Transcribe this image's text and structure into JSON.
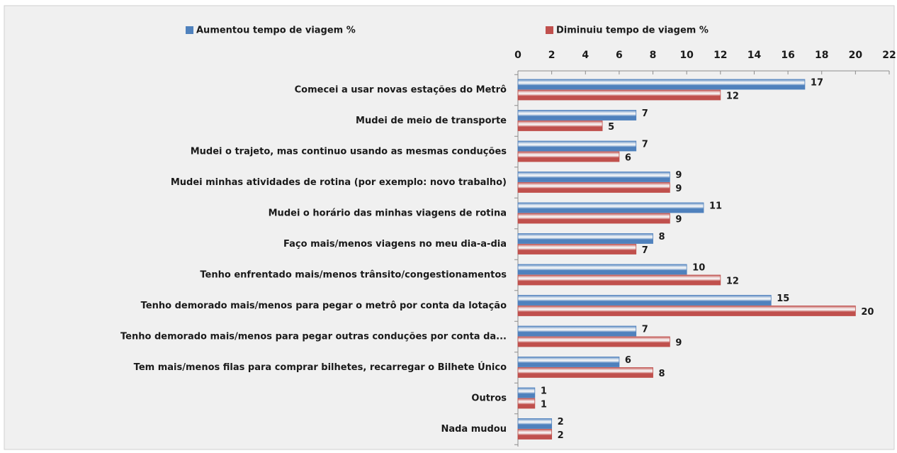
{
  "chart_data": {
    "type": "bar",
    "orientation": "horizontal",
    "categories": [
      "Comecei a usar novas estações do Metrô",
      "Mudei de meio de transporte",
      "Mudei o trajeto, mas continuo usando as mesmas conduções",
      "Mudei minhas atividades de rotina (por exemplo: novo trabalho)",
      "Mudei o horário das minhas viagens de rotina",
      "Faço mais/menos viagens no meu dia-a-dia",
      "Tenho enfrentado mais/menos trânsito/congestionamentos",
      "Tenho demorado mais/menos para pegar o metrô por conta da lotação",
      "Tenho demorado mais/menos para pegar outras conduções por conta da...",
      "Tem mais/menos filas para comprar bilhetes, recarregar o Bilhete Único",
      "Outros",
      "Nada mudou"
    ],
    "series": [
      {
        "name": "Aumentou tempo de viagem %",
        "color": "#4f81bd",
        "values": [
          17,
          7,
          7,
          9,
          11,
          8,
          10,
          15,
          7,
          6,
          1,
          2
        ]
      },
      {
        "name": "Diminuiu tempo de viagem %",
        "color": "#c0504d",
        "values": [
          12,
          5,
          6,
          9,
          9,
          7,
          12,
          20,
          9,
          8,
          1,
          2
        ]
      }
    ],
    "xlim": [
      0,
      22
    ],
    "xticks": [
      0,
      2,
      4,
      6,
      8,
      10,
      12,
      14,
      16,
      18,
      20,
      22
    ]
  }
}
